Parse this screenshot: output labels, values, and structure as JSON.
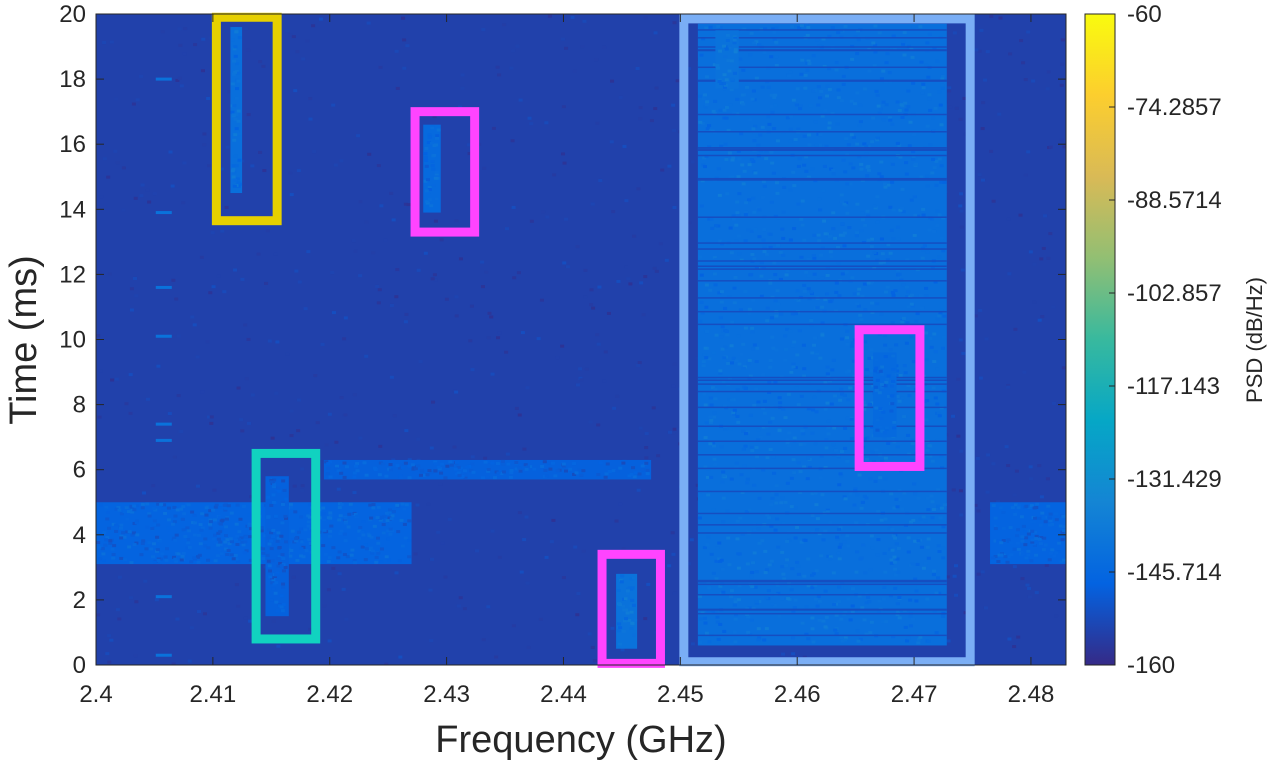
{
  "chart_data": {
    "type": "heatmap",
    "title": "",
    "xlabel": "Frequency (GHz)",
    "ylabel": "Time (ms)",
    "xlim": [
      2.4,
      2.483
    ],
    "ylim": [
      0,
      20
    ],
    "x_ticks": [
      "2.4",
      "2.41",
      "2.42",
      "2.43",
      "2.44",
      "2.45",
      "2.46",
      "2.47",
      "2.48"
    ],
    "y_ticks": [
      "0",
      "2",
      "4",
      "6",
      "8",
      "10",
      "12",
      "14",
      "16",
      "18",
      "20"
    ],
    "colorbar": {
      "label": "PSD (dB/Hz)",
      "range": [
        -160,
        -60
      ],
      "ticks": [
        "-60",
        "-74.2857",
        "-88.5714",
        "-102.857",
        "-117.143",
        "-131.429",
        "-145.714",
        "-160"
      ]
    },
    "background_level_db": -155,
    "signal_regions": [
      {
        "f": [
          2.4,
          2.427
        ],
        "t": [
          3.1,
          5.0
        ],
        "level_db": -147,
        "kind": "band"
      },
      {
        "f": [
          2.4765,
          2.483
        ],
        "t": [
          3.1,
          5.0
        ],
        "level_db": -147,
        "kind": "band"
      },
      {
        "f": [
          2.4195,
          2.4475
        ],
        "t": [
          5.7,
          6.3
        ],
        "level_db": -148,
        "kind": "band"
      },
      {
        "f": [
          2.4515,
          2.4728
        ],
        "t": [
          0.6,
          19.7
        ],
        "level_db": -143,
        "kind": "noisy_block"
      },
      {
        "f": [
          2.4115,
          2.4125
        ],
        "t": [
          14.5,
          19.6
        ],
        "level_db": -143,
        "kind": "burst"
      },
      {
        "f": [
          2.4145,
          2.4165
        ],
        "t": [
          1.5,
          5.8
        ],
        "level_db": -148,
        "kind": "burst"
      },
      {
        "f": [
          2.428,
          2.4295
        ],
        "t": [
          13.9,
          16.6
        ],
        "level_db": -145,
        "kind": "burst"
      },
      {
        "f": [
          2.4445,
          2.4463
        ],
        "t": [
          0.5,
          2.8
        ],
        "level_db": -142,
        "kind": "burst"
      },
      {
        "f": [
          2.4665,
          2.4685
        ],
        "t": [
          7.0,
          9.6
        ],
        "level_db": -145,
        "kind": "burst"
      },
      {
        "f": [
          2.453,
          2.455
        ],
        "t": [
          17.7,
          19.5
        ],
        "level_db": -142,
        "kind": "burst"
      }
    ],
    "pulses": {
      "f": 2.4058,
      "t": [
        0.3,
        2.1,
        6.9,
        7.4,
        10.1,
        11.6,
        13.9,
        18.0
      ],
      "level_db": -142
    },
    "annotation_boxes": [
      {
        "color": "#e6d000",
        "f": [
          2.4103,
          2.4155
        ],
        "t": [
          13.65,
          19.9
        ]
      },
      {
        "color": "#ff44ff",
        "f": [
          2.4273,
          2.4324
        ],
        "t": [
          13.3,
          17.0
        ]
      },
      {
        "color": "#11d2c0",
        "f": [
          2.4137,
          2.4188
        ],
        "t": [
          0.8,
          6.5
        ]
      },
      {
        "color": "#ff44ff",
        "f": [
          2.4433,
          2.4483
        ],
        "t": [
          0.05,
          3.4
        ]
      },
      {
        "color": "#ff44ff",
        "f": [
          2.4653,
          2.4705
        ],
        "t": [
          6.1,
          10.3
        ]
      },
      {
        "color": "#7aaef5",
        "f": [
          2.4503,
          2.4748
        ],
        "t": [
          0.1,
          19.85
        ]
      }
    ]
  }
}
